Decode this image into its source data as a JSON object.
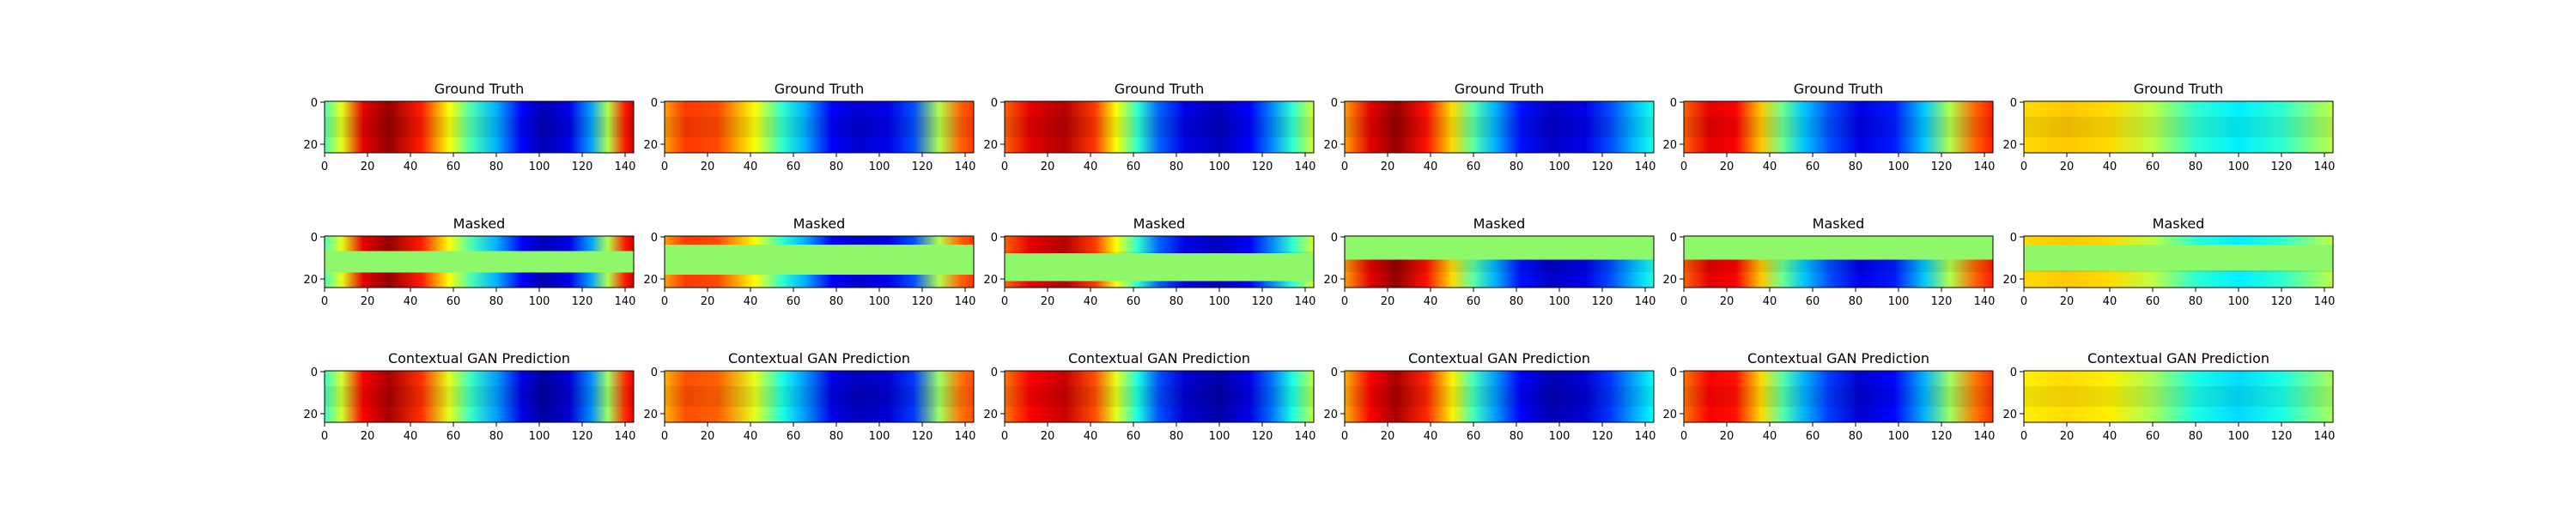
{
  "figure": {
    "row_titles": [
      "Ground Truth",
      "Masked",
      "Contextual GAN Prediction"
    ],
    "x_ticks": [
      0,
      20,
      40,
      60,
      80,
      100,
      120,
      140
    ],
    "y_ticks": [
      0,
      20
    ],
    "colormap": "jet",
    "mask_color": "#8ff86a"
  },
  "chart_data": {
    "type": "heatmap",
    "layout": "3 rows x 6 columns of heatmap panels",
    "xlim": [
      0,
      144
    ],
    "ylim": [
      24,
      0
    ],
    "grid": false,
    "samples": [
      {
        "bands": [
          [
            0,
            0.45
          ],
          [
            8,
            0.6
          ],
          [
            18,
            0.9
          ],
          [
            30,
            0.98
          ],
          [
            45,
            0.85
          ],
          [
            58,
            0.62
          ],
          [
            68,
            0.45
          ],
          [
            80,
            0.3
          ],
          [
            92,
            0.12
          ],
          [
            102,
            0.05
          ],
          [
            114,
            0.1
          ],
          [
            124,
            0.28
          ],
          [
            132,
            0.55
          ],
          [
            140,
            0.85
          ],
          [
            144,
            0.92
          ]
        ],
        "mask": [
          7,
          17
        ]
      },
      {
        "bands": [
          [
            0,
            0.72
          ],
          [
            10,
            0.82
          ],
          [
            25,
            0.8
          ],
          [
            42,
            0.62
          ],
          [
            55,
            0.42
          ],
          [
            65,
            0.3
          ],
          [
            78,
            0.12
          ],
          [
            90,
            0.08
          ],
          [
            104,
            0.1
          ],
          [
            116,
            0.2
          ],
          [
            128,
            0.55
          ],
          [
            138,
            0.78
          ],
          [
            144,
            0.82
          ]
        ],
        "mask": [
          4,
          18
        ]
      },
      {
        "bands": [
          [
            0,
            0.78
          ],
          [
            12,
            0.9
          ],
          [
            28,
            0.95
          ],
          [
            42,
            0.82
          ],
          [
            52,
            0.62
          ],
          [
            62,
            0.42
          ],
          [
            72,
            0.22
          ],
          [
            84,
            0.1
          ],
          [
            100,
            0.06
          ],
          [
            114,
            0.12
          ],
          [
            124,
            0.25
          ],
          [
            134,
            0.42
          ],
          [
            144,
            0.58
          ]
        ],
        "mask": [
          8,
          21
        ]
      },
      {
        "bands": [
          [
            0,
            0.72
          ],
          [
            12,
            0.9
          ],
          [
            24,
            0.98
          ],
          [
            38,
            0.86
          ],
          [
            50,
            0.66
          ],
          [
            60,
            0.46
          ],
          [
            70,
            0.3
          ],
          [
            82,
            0.14
          ],
          [
            96,
            0.07
          ],
          [
            112,
            0.1
          ],
          [
            124,
            0.2
          ],
          [
            136,
            0.32
          ],
          [
            144,
            0.4
          ]
        ],
        "mask": [
          0,
          11
        ]
      },
      {
        "bands": [
          [
            0,
            0.78
          ],
          [
            12,
            0.9
          ],
          [
            24,
            0.88
          ],
          [
            36,
            0.68
          ],
          [
            46,
            0.48
          ],
          [
            56,
            0.32
          ],
          [
            68,
            0.2
          ],
          [
            82,
            0.1
          ],
          [
            98,
            0.15
          ],
          [
            112,
            0.32
          ],
          [
            124,
            0.55
          ],
          [
            136,
            0.78
          ],
          [
            144,
            0.85
          ]
        ],
        "mask": [
          0,
          11
        ]
      },
      {
        "bands": [
          [
            0,
            0.66
          ],
          [
            20,
            0.68
          ],
          [
            40,
            0.66
          ],
          [
            60,
            0.56
          ],
          [
            80,
            0.42
          ],
          [
            100,
            0.36
          ],
          [
            120,
            0.42
          ],
          [
            144,
            0.56
          ]
        ],
        "mask": [
          4,
          16
        ]
      }
    ]
  }
}
